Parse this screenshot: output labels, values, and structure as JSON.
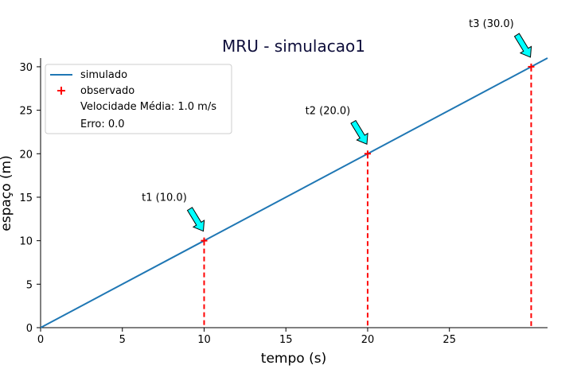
{
  "chart_data": {
    "type": "line",
    "title": "MRU - simulacao1",
    "xlabel": "tempo (s)",
    "ylabel": "espaço (m)",
    "xlim": [
      0,
      31
    ],
    "ylim": [
      0,
      31
    ],
    "xticks": [
      0,
      5,
      10,
      15,
      20,
      25
    ],
    "yticks": [
      0,
      5,
      10,
      15,
      20,
      25,
      30
    ],
    "grid": false,
    "legend_placement": "top-left",
    "series": [
      {
        "name": "simulado",
        "kind": "line",
        "color": "#1f77b4",
        "x": [
          0,
          31
        ],
        "y": [
          0,
          31
        ]
      },
      {
        "name": "observado",
        "kind": "marker",
        "marker": "+",
        "color": "#ff0000",
        "x": [
          10,
          20,
          30
        ],
        "y": [
          10,
          20,
          30
        ]
      }
    ],
    "legend_extra": [
      "Velocidade Média: 1.0 m/s",
      "Erro: 0.0"
    ],
    "reference_lines": {
      "style": "dashed",
      "color": "#ff0000",
      "x": [
        10,
        20,
        30
      ]
    },
    "annotations": [
      {
        "text": "t1 (10.0)",
        "x": 10,
        "y": 10,
        "arrow_color": "#00ffff"
      },
      {
        "text": "t2 (20.0)",
        "x": 20,
        "y": 20,
        "arrow_color": "#00ffff"
      },
      {
        "text": "t3 (30.0)",
        "x": 30,
        "y": 30,
        "arrow_color": "#00ffff"
      }
    ]
  }
}
